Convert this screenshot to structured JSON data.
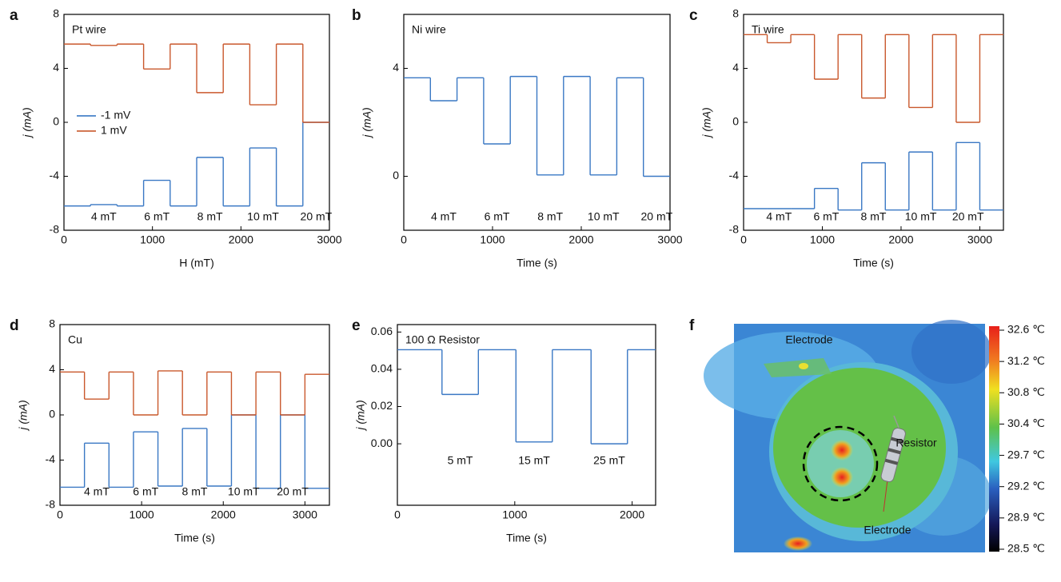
{
  "chart_data": [
    {
      "type": "line",
      "label": "a",
      "title": "Pt wire",
      "xlabel": "H (mT)",
      "ylabel": "j (mA)",
      "x": [
        0,
        300,
        600,
        900,
        1200,
        1500,
        1800,
        2100,
        2400,
        2700
      ],
      "series": [
        {
          "name": "-1 mV",
          "color": "#3a78c4",
          "values": [
            -6.2,
            -6.1,
            -6.2,
            -4.3,
            -6.2,
            -2.6,
            -6.2,
            -1.9,
            -6.2,
            0
          ]
        },
        {
          "name": "1 mV",
          "color": "#c9582c",
          "values": [
            5.8,
            5.7,
            5.8,
            3.95,
            5.8,
            2.2,
            5.8,
            1.3,
            5.8,
            0
          ]
        }
      ],
      "xlim": [
        0,
        3000
      ],
      "xticks": [
        0,
        1000,
        2000,
        3000
      ],
      "ylim": [
        -8,
        8
      ],
      "yticks": [
        -8,
        -4,
        0,
        4,
        8
      ],
      "legend": "center left",
      "annotations": [
        "4 mT",
        "6 mT",
        "8 mT",
        "10 mT",
        "20 mT"
      ]
    },
    {
      "type": "line",
      "label": "b",
      "title": "Ni wire",
      "xlabel": "Time (s)",
      "ylabel": "j (mA)",
      "x": [
        0,
        300,
        600,
        900,
        1200,
        1500,
        1800,
        2100,
        2400,
        2700
      ],
      "series": [
        {
          "color": "#3a78c4",
          "values": [
            3.65,
            2.8,
            3.65,
            1.2,
            3.7,
            0.05,
            3.7,
            0.05,
            3.65,
            0
          ]
        }
      ],
      "xlim": [
        0,
        3000
      ],
      "xticks": [
        0,
        1000,
        2000,
        3000
      ],
      "ylim": [
        -2,
        6
      ],
      "yticks": [
        0,
        4
      ],
      "annotations": [
        "4 mT",
        "6 mT",
        "8 mT",
        "10 mT",
        "20 mT"
      ]
    },
    {
      "type": "line",
      "label": "c",
      "title": "Ti wire",
      "xlabel": "Time (s)",
      "ylabel": "j (mA)",
      "x": [
        0,
        300,
        600,
        900,
        1200,
        1500,
        1800,
        2100,
        2400,
        2700,
        3000
      ],
      "series": [
        {
          "color": "#3a78c4",
          "values": [
            -6.4,
            -6.4,
            -6.4,
            -4.9,
            -6.5,
            -3.0,
            -6.5,
            -2.2,
            -6.5,
            -1.5,
            -6.5
          ]
        },
        {
          "color": "#c9582c",
          "values": [
            6.5,
            5.9,
            6.5,
            3.2,
            6.5,
            1.8,
            6.5,
            1.1,
            6.5,
            0,
            6.5
          ]
        }
      ],
      "xlim": [
        0,
        3300
      ],
      "xticks": [
        0,
        1000,
        2000,
        3000
      ],
      "ylim": [
        -8,
        8
      ],
      "yticks": [
        -8,
        -4,
        0,
        4,
        8
      ],
      "annotations": [
        "4 mT",
        "6 mT",
        "8 mT",
        "10 mT",
        "20 mT"
      ]
    },
    {
      "type": "line",
      "label": "d",
      "title": "Cu",
      "xlabel": "Time (s)",
      "ylabel": "j (mA)",
      "x": [
        0,
        300,
        600,
        900,
        1200,
        1500,
        1800,
        2100,
        2400,
        2700,
        3000
      ],
      "series": [
        {
          "color": "#3a78c4",
          "values": [
            -6.4,
            -2.5,
            -6.4,
            -1.5,
            -6.3,
            -1.2,
            -6.3,
            0,
            -6.5,
            0,
            -6.5
          ]
        },
        {
          "color": "#c9582c",
          "values": [
            3.8,
            1.4,
            3.8,
            0,
            3.9,
            0,
            3.8,
            0,
            3.8,
            0,
            3.6
          ]
        }
      ],
      "xlim": [
        0,
        3300
      ],
      "xticks": [
        0,
        1000,
        2000,
        3000
      ],
      "ylim": [
        -8,
        8
      ],
      "yticks": [
        -8,
        -4,
        0,
        4,
        8
      ],
      "annotations": [
        "4 mT",
        "6 mT",
        "8 mT",
        "10 mT",
        "20 mT"
      ]
    },
    {
      "type": "line",
      "label": "e",
      "title": "100 Ω Resistor",
      "xlabel": "Time (s)",
      "ylabel": "j (mA)",
      "x": [
        0,
        380,
        690,
        1010,
        1320,
        1650,
        1960
      ],
      "series": [
        {
          "color": "#3a78c4",
          "values": [
            0.0505,
            0.0265,
            0.0505,
            0.001,
            0.0505,
            0,
            0.0505
          ]
        }
      ],
      "xlim": [
        0,
        2200
      ],
      "xticks": [
        0,
        1000,
        2000
      ],
      "ylim": [
        -0.033,
        0.064
      ],
      "yticks": [
        {
          "value": 0,
          "label": "0.00"
        },
        {
          "value": 0.02,
          "label": "0.02"
        },
        {
          "value": 0.04,
          "label": "0.04"
        },
        {
          "value": 0.06,
          "label": "0.06"
        }
      ],
      "annotations": [
        "5 mT",
        "15 mT",
        "25 mT"
      ]
    },
    {
      "type": "image",
      "label": "f",
      "annotations": [
        "Electrode",
        "Resistor",
        "Electrode"
      ],
      "colorbar_labels": [
        "32.6 ℃",
        "31.2 ℃",
        "30.8 ℃",
        "30.4 ℃",
        "29.7 ℃",
        "29.2 ℃",
        "28.9 ℃",
        "28.5 ℃"
      ]
    }
  ]
}
